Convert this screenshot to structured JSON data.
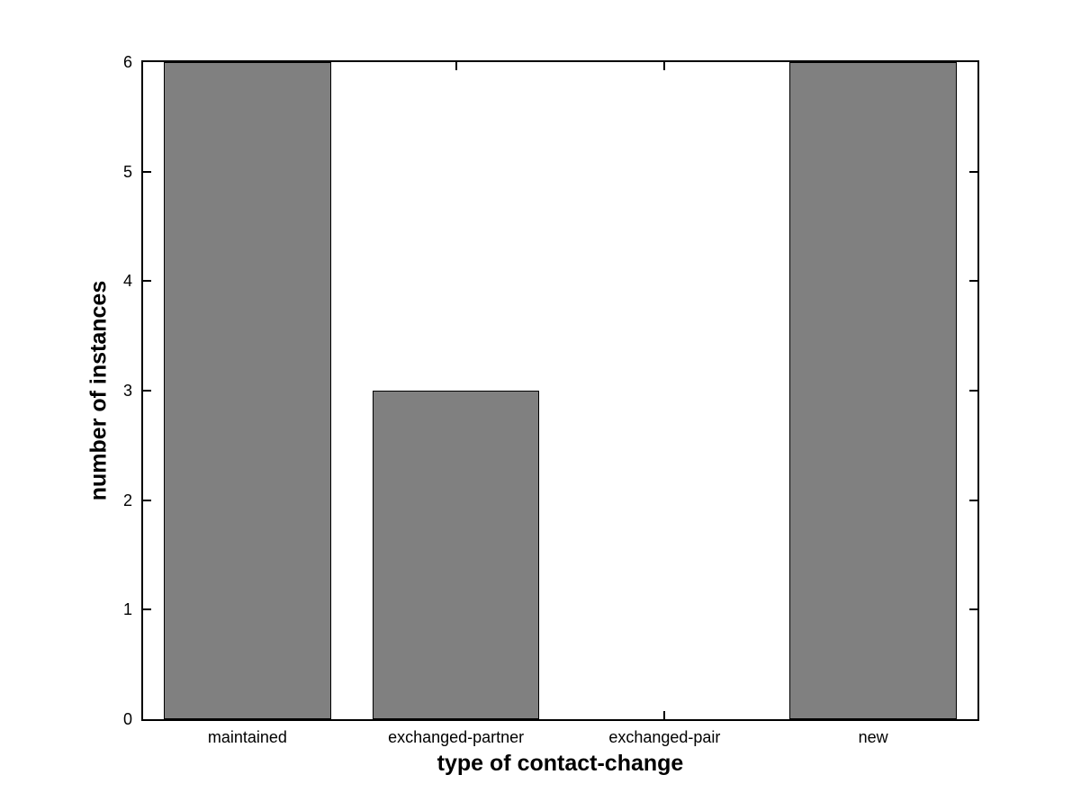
{
  "figure": {
    "background": "#ffffff"
  },
  "chart_data": {
    "type": "bar",
    "xlabel": "type of contact-change",
    "ylabel": "number of instances",
    "categories": [
      "maintained",
      "exchanged-partner",
      "exchanged-pair",
      "new"
    ],
    "values": [
      6,
      3,
      0,
      6
    ],
    "ylim": [
      0,
      6
    ],
    "yticks": [
      0,
      1,
      2,
      3,
      4,
      5,
      6
    ],
    "xlim": [
      0.5,
      4.5
    ],
    "bar_width": 0.8,
    "bar_color": "#808080",
    "bar_edge_color": "#000000",
    "axis_color": "#000000",
    "grid": false,
    "legend": "none",
    "tick_direction": "in",
    "box": true
  }
}
